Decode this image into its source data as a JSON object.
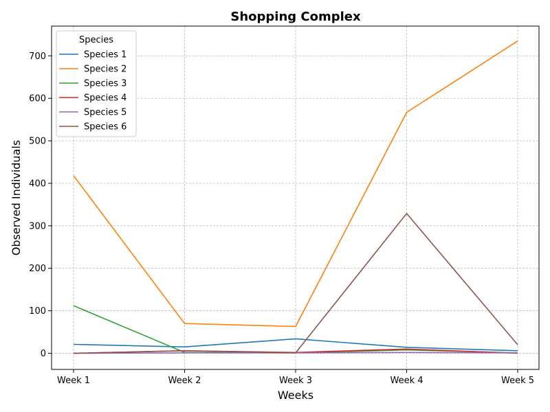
{
  "chart_data": {
    "type": "line",
    "title": "Shopping Complex",
    "xlabel": "Weeks",
    "ylabel": "Observed Individuals",
    "categories": [
      "Week 1",
      "Week 2",
      "Week 3",
      "Week 4",
      "Week 5"
    ],
    "ylim": [
      -38,
      770
    ],
    "yticks": [
      0,
      100,
      200,
      300,
      400,
      500,
      600,
      700
    ],
    "grid": true,
    "legend_title": "Species",
    "legend_position": "top-left",
    "series": [
      {
        "name": "Species 1",
        "color": "#1f77b4",
        "values": [
          21,
          15,
          34,
          14,
          6
        ]
      },
      {
        "name": "Species 2",
        "color": "#ff7f0e",
        "values": [
          418,
          70,
          63,
          567,
          735
        ]
      },
      {
        "name": "Species 3",
        "color": "#2ca02c",
        "values": [
          112,
          2,
          1,
          8,
          1
        ]
      },
      {
        "name": "Species 4",
        "color": "#d62728",
        "values": [
          0,
          6,
          2,
          10,
          0
        ]
      },
      {
        "name": "Species 5",
        "color": "#9467bd",
        "values": [
          0,
          1,
          1,
          2,
          1
        ]
      },
      {
        "name": "Species 6",
        "color": "#8c564b",
        "values": [
          0,
          6,
          1,
          329,
          20
        ]
      }
    ]
  }
}
